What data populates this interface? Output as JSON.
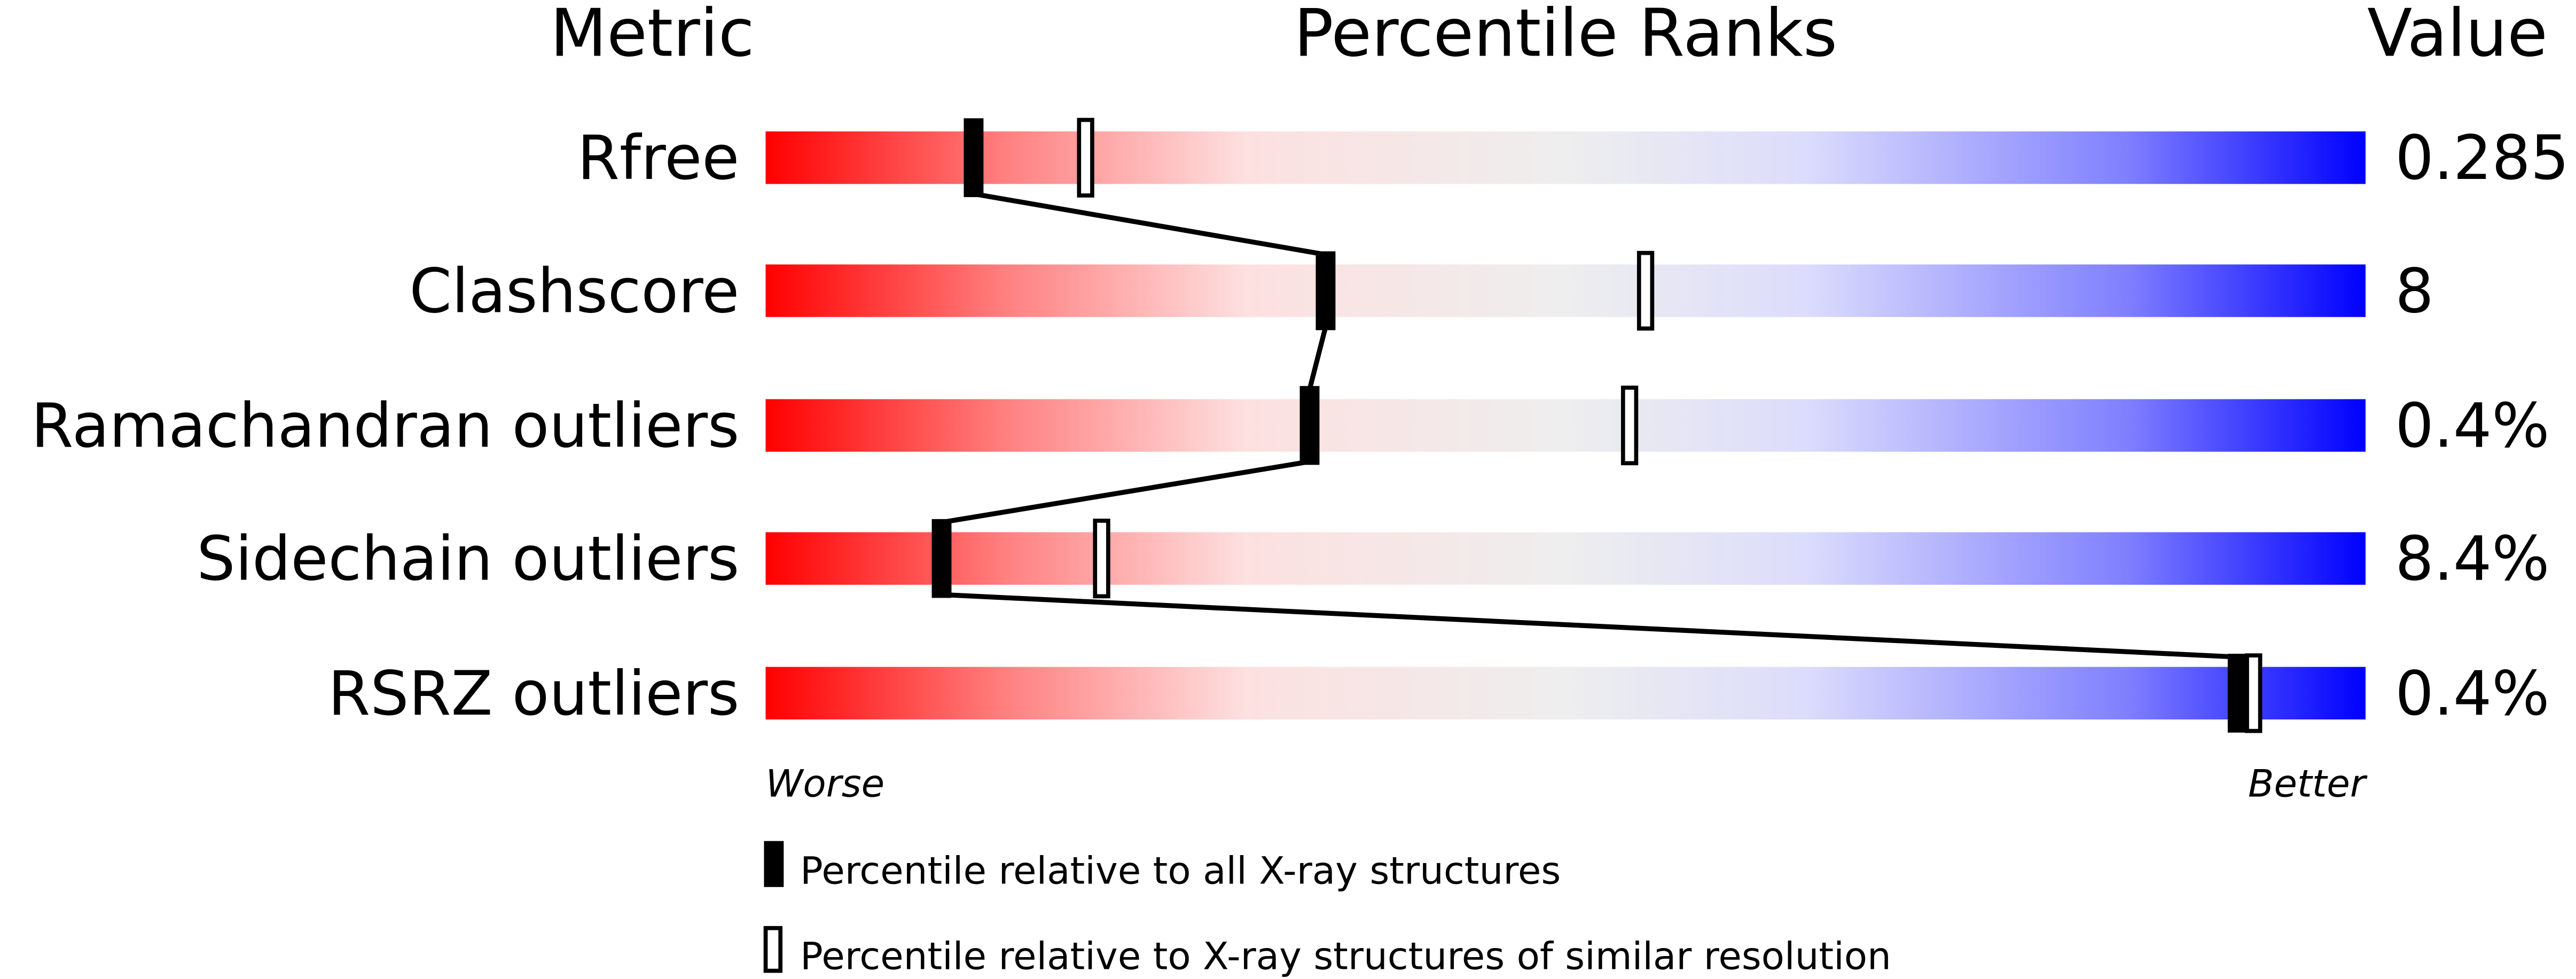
{
  "chart_data": {
    "type": "percentile-slider",
    "headers": {
      "metric": "Metric",
      "ranks": "Percentile Ranks",
      "value": "Value"
    },
    "axis": {
      "worse_label": "Worse",
      "better_label": "Better",
      "range": [
        0,
        100
      ]
    },
    "metrics": [
      {
        "name": "Rfree",
        "value": "0.285",
        "percentile_all": 13,
        "percentile_similar": 20
      },
      {
        "name": "Clashscore",
        "value": "8",
        "percentile_all": 35,
        "percentile_similar": 55
      },
      {
        "name": "Ramachandran outliers",
        "value": "0.4%",
        "percentile_all": 34,
        "percentile_similar": 54
      },
      {
        "name": "Sidechain outliers",
        "value": "8.4%",
        "percentile_all": 11,
        "percentile_similar": 21
      },
      {
        "name": "RSRZ outliers",
        "value": "0.4%",
        "percentile_all": 92,
        "percentile_similar": 93
      }
    ],
    "legend": [
      {
        "marker": "filled",
        "label": "Percentile relative to all X-ray structures"
      },
      {
        "marker": "hollow",
        "label": "Percentile relative to X-ray structures of similar resolution"
      }
    ],
    "gradient_colors": [
      "#ff0000",
      "#ff8080",
      "#fde0e0",
      "#eeeeee",
      "#dcdcfc",
      "#8080ff",
      "#0000ff"
    ]
  }
}
